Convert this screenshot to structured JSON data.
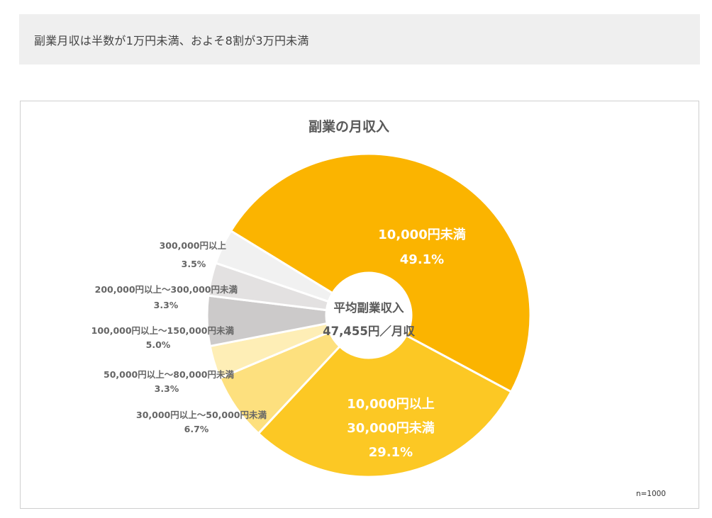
{
  "headline": "副業月収は半数が1万円未満、およそ8割が3万円未満",
  "chart_data": {
    "type": "pie",
    "title": "副業の月収入",
    "center_label": {
      "line1": "平均副業収入",
      "line2": "47,455円／月収"
    },
    "note": "n=1000",
    "slices": [
      {
        "label": "10,000円未満",
        "label_lines": [
          "10,000円未満"
        ],
        "value": 49.1,
        "value_text": "49.1%",
        "color": "#fbb400",
        "label_position": "inside"
      },
      {
        "label": "10,000円以上 30,000円未満",
        "label_lines": [
          "10,000円以上",
          "30,000円未満"
        ],
        "value": 29.1,
        "value_text": "29.1%",
        "color": "#fcc824",
        "label_position": "inside"
      },
      {
        "label": "30,000円以上～50,000円未満",
        "label_lines": [
          "30,000円以上～50,000円未満"
        ],
        "value": 6.7,
        "value_text": "6.7%",
        "color": "#fde07e",
        "label_position": "outside"
      },
      {
        "label": "50,000円以上～80,000円未満",
        "label_lines": [
          "50,000円以上～80,000円未満"
        ],
        "value": 3.3,
        "value_text": "3.3%",
        "color": "#feeeb6",
        "label_position": "outside"
      },
      {
        "label": "100,000円以上～150,000円未満",
        "label_lines": [
          "100,000円以上～150,000円未満"
        ],
        "value": 5.0,
        "value_text": "5.0%",
        "color": "#cccaca",
        "label_position": "outside"
      },
      {
        "label": "200,000円以上～300,000円未満",
        "label_lines": [
          "200,000円以上～300,000円未満"
        ],
        "value": 3.3,
        "value_text": "3.3%",
        "color": "#e3e1e1",
        "label_position": "outside"
      },
      {
        "label": "300,000円以上",
        "label_lines": [
          "300,000円以上"
        ],
        "value": 3.5,
        "value_text": "3.5%",
        "color": "#f1f1f1",
        "label_position": "outside"
      }
    ]
  }
}
